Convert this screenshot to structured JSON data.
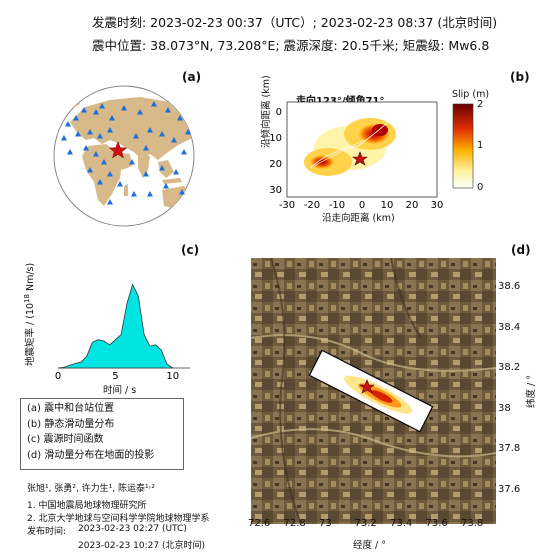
{
  "header": {
    "line1": "发震时刻: 2023-02-23 00:37（UTC）;   2023-02-23  08:37 (北京时间)",
    "line2": "震中位置: 38.073°N,  73.208°E;   震源深度: 20.5千米; 矩震级: Mw6.8"
  },
  "panels": {
    "a": "(a)",
    "b": "(b)",
    "c": "(c)",
    "d": "(d)"
  },
  "panel_b": {
    "title": "走向123°/倾角71°",
    "xlabel": "沿走向距离 (km)",
    "ylabel": "沿倾向距离 (km)",
    "xticks": [
      "-30",
      "-20",
      "-10",
      "0",
      "10",
      "20",
      "30"
    ],
    "yticks": [
      "0",
      "10",
      "20",
      "30"
    ],
    "colorbar_title": "Slip (m)",
    "colorbar_ticks": [
      "2",
      "1",
      "0"
    ]
  },
  "panel_c": {
    "ylabel": "地震矩率 / (10",
    "ylabel_exp": "18",
    "ylabel_unit": " Nm/s)",
    "xlabel": "时间 / s",
    "xticks": [
      "0",
      "5",
      "10"
    ]
  },
  "panel_d": {
    "xlabel": "经度 / °",
    "ylabel": "纬度 / °",
    "xticks": [
      "72.6",
      "72.8",
      "73",
      "73.2",
      "73.4",
      "73.6",
      "73.8"
    ],
    "yticks": [
      "38.6",
      "38.4",
      "38.2",
      "38",
      "37.8",
      "37.6"
    ]
  },
  "legend": [
    "(a) 震中和台站位置",
    "(b) 静态滑动量分布",
    "(c) 震源时间函数",
    "(d) 滑动量分布在地面的投影"
  ],
  "footer": {
    "authors": "张旭¹, 张勇², 许力生¹, 陈运泰¹˒²",
    "affil1": "1. 中国地震局地球物理研究所",
    "affil2": "2. 北京大学地球与空间科学学院地球物理学系",
    "release_label": "发布时间:",
    "release_time1": "2023-02-23  02:27 (UTC)",
    "release_time2": "2023-02-23  10:27 (北京时间)"
  },
  "chart_data": [
    {
      "type": "area",
      "panel": "c",
      "xlabel": "时间 / s",
      "x": [
        0,
        0.5,
        1,
        1.5,
        2,
        2.5,
        3,
        3.5,
        4,
        4.5,
        5,
        5.5,
        6,
        6.5,
        7,
        7.5,
        8,
        8.5,
        9,
        9.5,
        10
      ],
      "y": [
        0,
        0.05,
        0.2,
        0.35,
        0.45,
        0.9,
        2.0,
        2.2,
        2.1,
        1.8,
        2.2,
        2.6,
        5.0,
        6.5,
        5.6,
        2.6,
        1.7,
        1.8,
        1.4,
        0.3,
        0
      ],
      "xlim": [
        0,
        11.5
      ]
    }
  ],
  "colors": {
    "land": "#d7b98a",
    "ocean": "#ffffff",
    "station": "#1e6fd9",
    "epicenter": "#d01010",
    "stf_fill": "#00e4e4"
  }
}
